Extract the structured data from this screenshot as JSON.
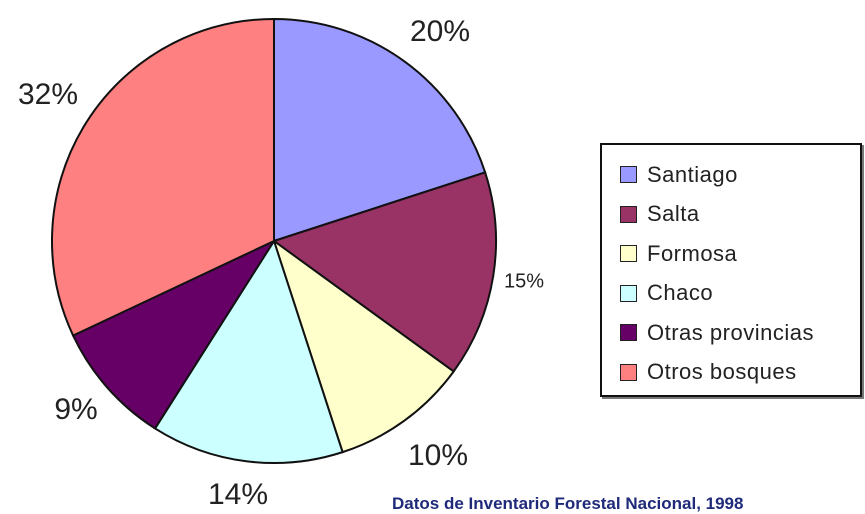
{
  "chart_data": {
    "type": "pie",
    "title": "",
    "start_angle_deg": 0,
    "direction": "clockwise",
    "slices": [
      {
        "name": "Santiago",
        "value": 20,
        "label": "20%",
        "color": "#9999ff"
      },
      {
        "name": "Salta",
        "value": 15,
        "label": "15%",
        "color": "#993366"
      },
      {
        "name": "Formosa",
        "value": 10,
        "label": "10%",
        "color": "#ffffcc"
      },
      {
        "name": "Chaco",
        "value": 14,
        "label": "14%",
        "color": "#ccffff"
      },
      {
        "name": "Otras provincias",
        "value": 9,
        "label": "9%",
        "color": "#660066"
      },
      {
        "name": "Otros bosques",
        "value": 32,
        "label": "32%",
        "color": "#ff8080"
      }
    ],
    "legend_position": "right"
  },
  "source_note": "Datos de Inventario Forestal Nacional, 1998"
}
